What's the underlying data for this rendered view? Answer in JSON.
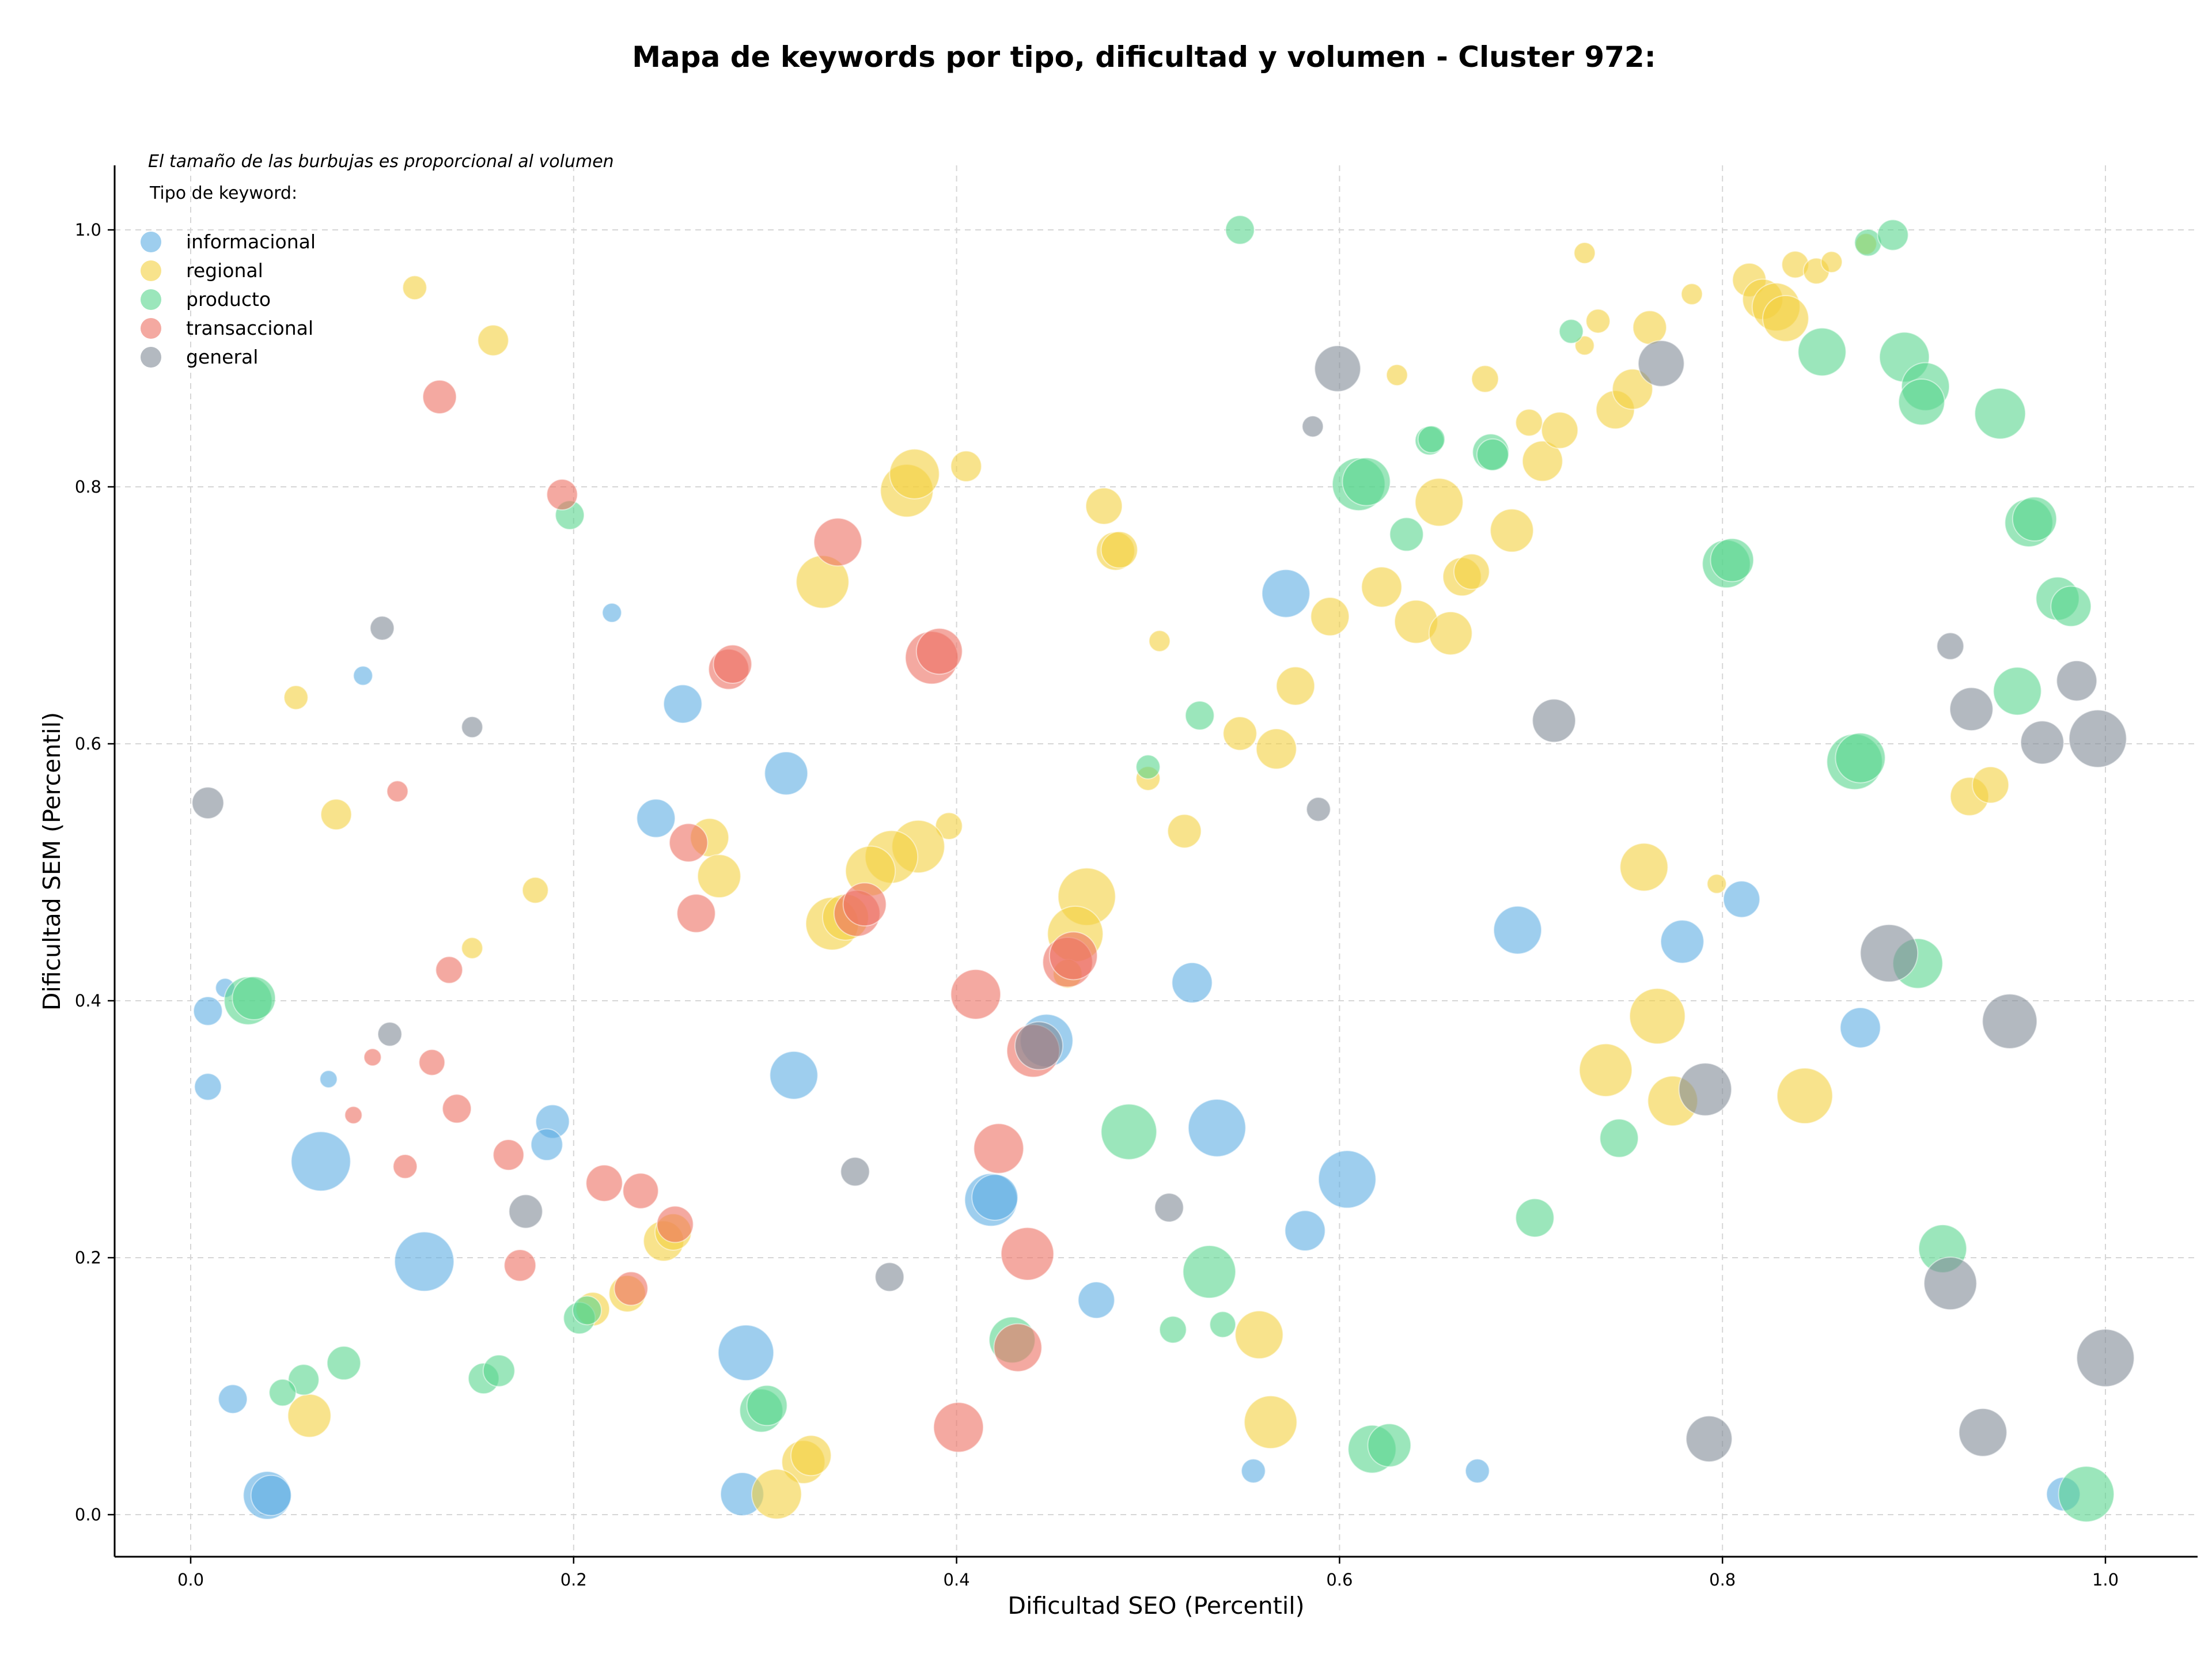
{
  "chart_data": {
    "type": "scatter",
    "title": "Mapa de keywords por tipo, dificultad y volumen - Cluster 972:",
    "xlabel": "Dificultad SEO (Percentil)",
    "ylabel": "Dificultad SEM (Percentil)",
    "xlim": [
      -0.04,
      1.05
    ],
    "ylim": [
      -0.035,
      1.05
    ],
    "xticks": [
      "0.0",
      "0.2",
      "0.4",
      "0.6",
      "0.8",
      "1.0"
    ],
    "yticks": [
      "0.0",
      "0.2",
      "0.4",
      "0.6",
      "0.8",
      "1.0"
    ],
    "grid": true,
    "size_note": "El tamaño de las burbujas es proporcional al volumen",
    "legend_title": "Tipo de keyword:",
    "legend_position": "top-left",
    "series": [
      {
        "name": "informacional",
        "color": "#5dade2",
        "points": [
          [
            0.22,
            0.702,
            0.2
          ],
          [
            0.09,
            0.653,
            0.2
          ],
          [
            0.257,
            0.631,
            0.4
          ],
          [
            0.311,
            0.577,
            0.45
          ],
          [
            0.243,
            0.542,
            0.4
          ],
          [
            0.018,
            0.41,
            0.2
          ],
          [
            0.009,
            0.392,
            0.3
          ],
          [
            0.009,
            0.333,
            0.28
          ],
          [
            0.072,
            0.339,
            0.18
          ],
          [
            0.068,
            0.275,
            0.62
          ],
          [
            0.189,
            0.306,
            0.35
          ],
          [
            0.186,
            0.288,
            0.33
          ],
          [
            0.122,
            0.197,
            0.62
          ],
          [
            0.315,
            0.342,
            0.5
          ],
          [
            0.022,
            0.09,
            0.3
          ],
          [
            0.04,
            0.015,
            0.5
          ],
          [
            0.042,
            0.015,
            0.42
          ],
          [
            0.29,
            0.126,
            0.58
          ],
          [
            0.288,
            0.016,
            0.45
          ],
          [
            0.418,
            0.245,
            0.55
          ],
          [
            0.42,
            0.247,
            0.48
          ],
          [
            0.447,
            0.369,
            0.55
          ],
          [
            0.473,
            0.167,
            0.38
          ],
          [
            0.523,
            0.414,
            0.42
          ],
          [
            0.536,
            0.301,
            0.6
          ],
          [
            0.572,
            0.717,
            0.5
          ],
          [
            0.582,
            0.221,
            0.42
          ],
          [
            0.604,
            0.261,
            0.6
          ],
          [
            0.555,
            0.034,
            0.25
          ],
          [
            0.672,
            0.034,
            0.25
          ],
          [
            0.693,
            0.455,
            0.5
          ],
          [
            0.779,
            0.446,
            0.45
          ],
          [
            0.81,
            0.479,
            0.38
          ],
          [
            0.872,
            0.379,
            0.42
          ],
          [
            0.978,
            0.016,
            0.35
          ]
        ]
      },
      {
        "name": "regional",
        "color": "#f4d03f",
        "points": [
          [
            0.117,
            0.955,
            0.25
          ],
          [
            0.158,
            0.914,
            0.32
          ],
          [
            0.055,
            0.636,
            0.25
          ],
          [
            0.076,
            0.545,
            0.32
          ],
          [
            0.18,
            0.486,
            0.27
          ],
          [
            0.147,
            0.441,
            0.22
          ],
          [
            0.062,
            0.077,
            0.45
          ],
          [
            0.33,
            0.726,
            0.55
          ],
          [
            0.374,
            0.797,
            0.55
          ],
          [
            0.378,
            0.81,
            0.52
          ],
          [
            0.405,
            0.816,
            0.32
          ],
          [
            0.396,
            0.536,
            0.28
          ],
          [
            0.38,
            0.52,
            0.55
          ],
          [
            0.366,
            0.512,
            0.55
          ],
          [
            0.355,
            0.501,
            0.52
          ],
          [
            0.335,
            0.46,
            0.55
          ],
          [
            0.342,
            0.465,
            0.48
          ],
          [
            0.271,
            0.527,
            0.4
          ],
          [
            0.276,
            0.497,
            0.45
          ],
          [
            0.247,
            0.213,
            0.42
          ],
          [
            0.252,
            0.22,
            0.38
          ],
          [
            0.228,
            0.172,
            0.38
          ],
          [
            0.21,
            0.16,
            0.35
          ],
          [
            0.32,
            0.041,
            0.45
          ],
          [
            0.324,
            0.046,
            0.42
          ],
          [
            0.306,
            0.016,
            0.52
          ],
          [
            0.477,
            0.785,
            0.38
          ],
          [
            0.483,
            0.75,
            0.4
          ],
          [
            0.485,
            0.751,
            0.38
          ],
          [
            0.506,
            0.68,
            0.22
          ],
          [
            0.5,
            0.573,
            0.25
          ],
          [
            0.519,
            0.532,
            0.35
          ],
          [
            0.468,
            0.481,
            0.6
          ],
          [
            0.462,
            0.452,
            0.58
          ],
          [
            0.458,
            0.421,
            0.3
          ],
          [
            0.548,
            0.608,
            0.35
          ],
          [
            0.567,
            0.596,
            0.42
          ],
          [
            0.577,
            0.645,
            0.4
          ],
          [
            0.595,
            0.699,
            0.4
          ],
          [
            0.622,
            0.722,
            0.42
          ],
          [
            0.64,
            0.695,
            0.45
          ],
          [
            0.658,
            0.686,
            0.45
          ],
          [
            0.652,
            0.788,
            0.5
          ],
          [
            0.664,
            0.73,
            0.4
          ],
          [
            0.669,
            0.734,
            0.37
          ],
          [
            0.69,
            0.766,
            0.45
          ],
          [
            0.63,
            0.887,
            0.22
          ],
          [
            0.676,
            0.884,
            0.28
          ],
          [
            0.699,
            0.85,
            0.28
          ],
          [
            0.706,
            0.82,
            0.42
          ],
          [
            0.715,
            0.844,
            0.38
          ],
          [
            0.728,
            0.982,
            0.22
          ],
          [
            0.728,
            0.91,
            0.2
          ],
          [
            0.735,
            0.929,
            0.25
          ],
          [
            0.744,
            0.86,
            0.4
          ],
          [
            0.753,
            0.876,
            0.42
          ],
          [
            0.762,
            0.924,
            0.35
          ],
          [
            0.784,
            0.95,
            0.22
          ],
          [
            0.797,
            0.491,
            0.2
          ],
          [
            0.759,
            0.504,
            0.5
          ],
          [
            0.766,
            0.388,
            0.58
          ],
          [
            0.774,
            0.322,
            0.52
          ],
          [
            0.739,
            0.346,
            0.55
          ],
          [
            0.843,
            0.326,
            0.58
          ],
          [
            0.814,
            0.961,
            0.35
          ],
          [
            0.821,
            0.946,
            0.42
          ],
          [
            0.828,
            0.94,
            0.5
          ],
          [
            0.833,
            0.931,
            0.48
          ],
          [
            0.838,
            0.973,
            0.28
          ],
          [
            0.849,
            0.968,
            0.27
          ],
          [
            0.857,
            0.975,
            0.22
          ],
          [
            0.875,
            0.989,
            0.22
          ],
          [
            0.929,
            0.559,
            0.4
          ],
          [
            0.94,
            0.568,
            0.38
          ],
          [
            0.558,
            0.14,
            0.5
          ],
          [
            0.564,
            0.072,
            0.55
          ]
        ]
      },
      {
        "name": "producto",
        "color": "#58d68d",
        "points": [
          [
            0.198,
            0.778,
            0.3
          ],
          [
            0.548,
            1.0,
            0.3
          ],
          [
            0.03,
            0.4,
            0.5
          ],
          [
            0.033,
            0.402,
            0.45
          ],
          [
            0.08,
            0.118,
            0.35
          ],
          [
            0.059,
            0.105,
            0.32
          ],
          [
            0.048,
            0.095,
            0.28
          ],
          [
            0.153,
            0.106,
            0.32
          ],
          [
            0.161,
            0.112,
            0.33
          ],
          [
            0.203,
            0.153,
            0.33
          ],
          [
            0.207,
            0.159,
            0.3
          ],
          [
            0.298,
            0.081,
            0.45
          ],
          [
            0.301,
            0.085,
            0.42
          ],
          [
            0.429,
            0.136,
            0.48
          ],
          [
            0.49,
            0.298,
            0.58
          ],
          [
            0.527,
            0.622,
            0.3
          ],
          [
            0.5,
            0.582,
            0.25
          ],
          [
            0.513,
            0.144,
            0.28
          ],
          [
            0.532,
            0.189,
            0.55
          ],
          [
            0.539,
            0.148,
            0.27
          ],
          [
            0.61,
            0.802,
            0.55
          ],
          [
            0.614,
            0.804,
            0.5
          ],
          [
            0.617,
            0.051,
            0.5
          ],
          [
            0.626,
            0.054,
            0.45
          ],
          [
            0.635,
            0.763,
            0.35
          ],
          [
            0.647,
            0.836,
            0.3
          ],
          [
            0.648,
            0.837,
            0.28
          ],
          [
            0.679,
            0.827,
            0.38
          ],
          [
            0.68,
            0.825,
            0.33
          ],
          [
            0.702,
            0.231,
            0.4
          ],
          [
            0.721,
            0.921,
            0.25
          ],
          [
            0.746,
            0.293,
            0.4
          ],
          [
            0.802,
            0.74,
            0.5
          ],
          [
            0.805,
            0.743,
            0.45
          ],
          [
            0.852,
            0.905,
            0.5
          ],
          [
            0.869,
            0.586,
            0.58
          ],
          [
            0.872,
            0.589,
            0.52
          ],
          [
            0.876,
            0.99,
            0.28
          ],
          [
            0.889,
            0.996,
            0.32
          ],
          [
            0.895,
            0.901,
            0.52
          ],
          [
            0.906,
            0.878,
            0.5
          ],
          [
            0.904,
            0.866,
            0.48
          ],
          [
            0.902,
            0.429,
            0.52
          ],
          [
            0.915,
            0.207,
            0.5
          ],
          [
            0.945,
            0.857,
            0.53
          ],
          [
            0.96,
            0.772,
            0.5
          ],
          [
            0.963,
            0.775,
            0.46
          ],
          [
            0.954,
            0.641,
            0.5
          ],
          [
            0.975,
            0.713,
            0.45
          ],
          [
            0.982,
            0.707,
            0.42
          ],
          [
            0.99,
            0.016,
            0.58
          ]
        ]
      },
      {
        "name": "transaccional",
        "color": "#ec7063",
        "points": [
          [
            0.13,
            0.87,
            0.35
          ],
          [
            0.194,
            0.794,
            0.32
          ],
          [
            0.108,
            0.563,
            0.22
          ],
          [
            0.135,
            0.424,
            0.28
          ],
          [
            0.095,
            0.356,
            0.18
          ],
          [
            0.085,
            0.311,
            0.18
          ],
          [
            0.126,
            0.352,
            0.27
          ],
          [
            0.139,
            0.316,
            0.3
          ],
          [
            0.112,
            0.271,
            0.25
          ],
          [
            0.166,
            0.28,
            0.32
          ],
          [
            0.172,
            0.194,
            0.33
          ],
          [
            0.216,
            0.258,
            0.38
          ],
          [
            0.235,
            0.252,
            0.37
          ],
          [
            0.253,
            0.226,
            0.38
          ],
          [
            0.23,
            0.176,
            0.35
          ],
          [
            0.26,
            0.523,
            0.4
          ],
          [
            0.264,
            0.468,
            0.4
          ],
          [
            0.281,
            0.658,
            0.42
          ],
          [
            0.283,
            0.662,
            0.4
          ],
          [
            0.338,
            0.757,
            0.5
          ],
          [
            0.348,
            0.468,
            0.48
          ],
          [
            0.352,
            0.475,
            0.45
          ],
          [
            0.387,
            0.667,
            0.55
          ],
          [
            0.391,
            0.672,
            0.48
          ],
          [
            0.41,
            0.405,
            0.52
          ],
          [
            0.401,
            0.068,
            0.52
          ],
          [
            0.422,
            0.285,
            0.52
          ],
          [
            0.432,
            0.13,
            0.5
          ],
          [
            0.437,
            0.203,
            0.55
          ],
          [
            0.44,
            0.361,
            0.55
          ],
          [
            0.458,
            0.43,
            0.52
          ],
          [
            0.461,
            0.435,
            0.5
          ]
        ]
      },
      {
        "name": "general",
        "color": "#808b96",
        "points": [
          [
            0.009,
            0.554,
            0.33
          ],
          [
            0.1,
            0.69,
            0.25
          ],
          [
            0.147,
            0.613,
            0.22
          ],
          [
            0.104,
            0.374,
            0.25
          ],
          [
            0.175,
            0.236,
            0.35
          ],
          [
            0.347,
            0.267,
            0.3
          ],
          [
            0.365,
            0.185,
            0.3
          ],
          [
            0.443,
            0.365,
            0.5
          ],
          [
            0.511,
            0.239,
            0.3
          ],
          [
            0.586,
            0.847,
            0.22
          ],
          [
            0.589,
            0.549,
            0.25
          ],
          [
            0.599,
            0.892,
            0.48
          ],
          [
            0.712,
            0.618,
            0.45
          ],
          [
            0.768,
            0.896,
            0.48
          ],
          [
            0.791,
            0.331,
            0.55
          ],
          [
            0.793,
            0.059,
            0.48
          ],
          [
            0.887,
            0.437,
            0.6
          ],
          [
            0.919,
            0.676,
            0.28
          ],
          [
            0.93,
            0.627,
            0.45
          ],
          [
            0.95,
            0.384,
            0.57
          ],
          [
            0.936,
            0.064,
            0.5
          ],
          [
            0.919,
            0.18,
            0.55
          ],
          [
            0.967,
            0.601,
            0.45
          ],
          [
            0.985,
            0.649,
            0.42
          ],
          [
            0.996,
            0.604,
            0.6
          ],
          [
            1.0,
            0.122,
            0.6
          ]
        ]
      }
    ]
  }
}
